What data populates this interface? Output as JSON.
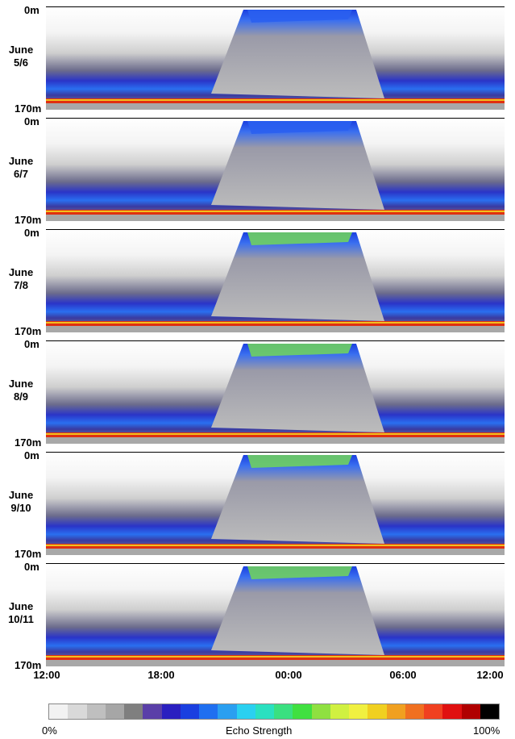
{
  "chart_data": {
    "type": "heatmap",
    "panels": [
      {
        "label": "June\n5/6",
        "label_line1": "June",
        "label_line2": "5/6"
      },
      {
        "label": "June\n6/7",
        "label_line1": "June",
        "label_line2": "6/7"
      },
      {
        "label": "June\n7/8",
        "label_line1": "June",
        "label_line2": "7/8"
      },
      {
        "label": "June\n8/9",
        "label_line1": "June",
        "label_line2": "8/9"
      },
      {
        "label": "June\n9/10",
        "label_line1": "June",
        "label_line2": "9/10"
      },
      {
        "label": "June\n10/11",
        "label_line1": "June",
        "label_line2": "10/11"
      }
    ],
    "depth_top_label": "0m",
    "depth_bottom_label": "170m",
    "depth_range": [
      0,
      170
    ],
    "x_ticks": [
      "12:00",
      "18:00",
      "00:00",
      "06:00",
      "12:00"
    ],
    "colorbar": {
      "label": "Echo Strength",
      "min_label": "0%",
      "max_label": "100%",
      "colors": [
        "#f2f2f2",
        "#d9d9d9",
        "#bfbfbf",
        "#a6a6a6",
        "#7f7f7f",
        "#5a3fa8",
        "#2a1fc0",
        "#1a3fe0",
        "#1f6ff0",
        "#2a9ff0",
        "#2ad0f0",
        "#2ae0c0",
        "#3ae080",
        "#40e040",
        "#8fe040",
        "#d0f040",
        "#f0f040",
        "#f0d020",
        "#f0a020",
        "#f07020",
        "#f04020",
        "#e01010",
        "#b00000",
        "#000000"
      ]
    }
  }
}
